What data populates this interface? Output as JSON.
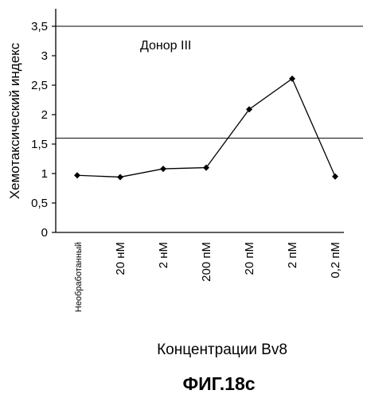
{
  "chart_data": {
    "type": "line",
    "categories": [
      "Необработанный",
      "20 нМ",
      "2 нМ",
      "200 пМ",
      "20 пМ",
      "2 пМ",
      "0,2 пМ"
    ],
    "series": [
      {
        "values": [
          0.97,
          0.94,
          1.08,
          1.1,
          2.09,
          2.61,
          0.95
        ]
      }
    ],
    "y_ticks": [
      "0",
      "0,5",
      "1",
      "1,5",
      "2",
      "2,5",
      "3",
      "3,5"
    ],
    "ylim": [
      0,
      3.5
    ],
    "reference_lines": [
      3.5,
      1.6
    ],
    "annotation": "Донор III",
    "ylabel": "Хемотаксический индекс",
    "xlabel": "Концентрации Bv8",
    "caption": "ФИГ.18c",
    "grid": false,
    "legend": "none"
  }
}
